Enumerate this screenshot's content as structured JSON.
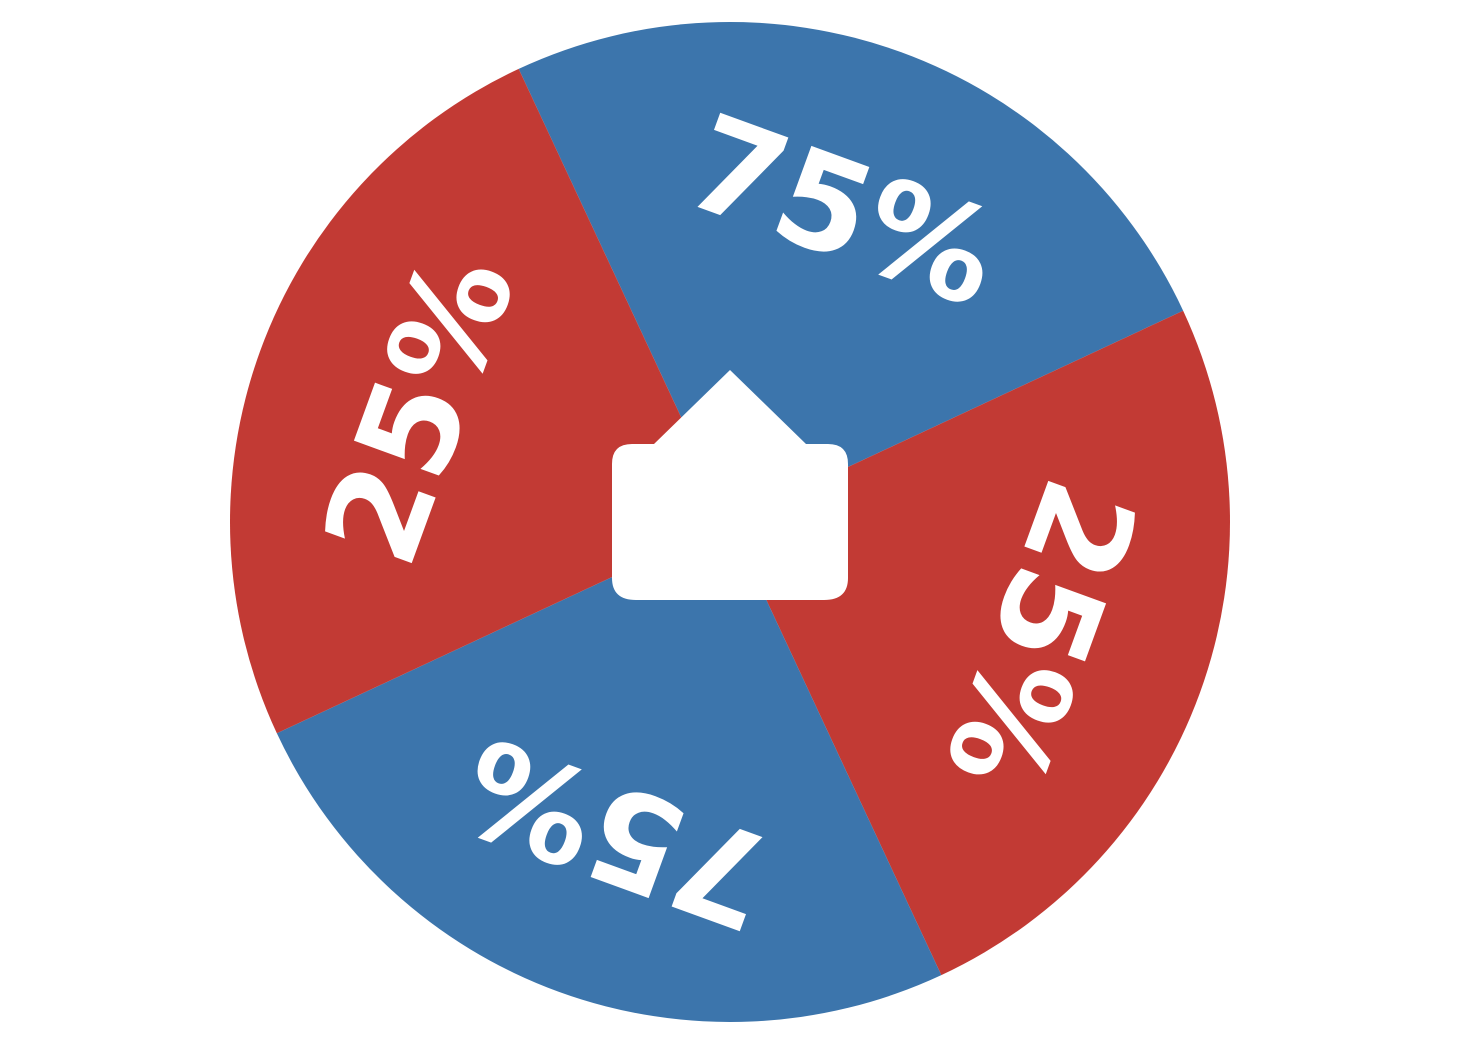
{
  "wheel": {
    "colors": {
      "blue": "#3c75ac",
      "red": "#c23a34",
      "label": "#ffffff",
      "pointer": "#ffffff"
    },
    "segments": [
      {
        "label": "75%",
        "color": "blue"
      },
      {
        "label": "25%",
        "color": "red"
      },
      {
        "label": "75%",
        "color": "blue"
      },
      {
        "label": "25%",
        "color": "red"
      }
    ],
    "pointer_icon": "arrow-up-pointer-icon"
  }
}
